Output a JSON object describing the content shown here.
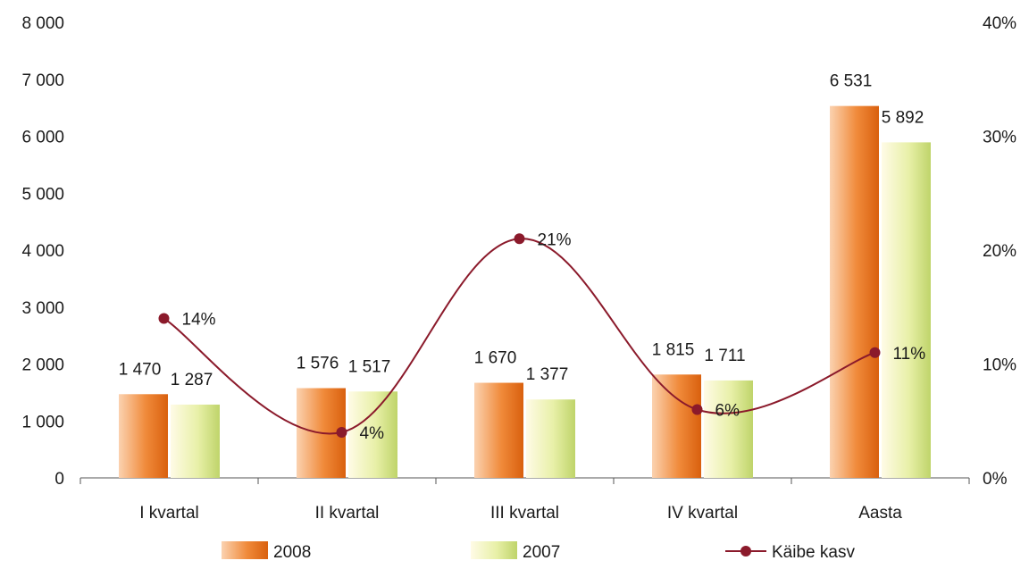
{
  "chart_data": {
    "type": "bar",
    "categories": [
      "I kvartal",
      "II kvartal",
      "III kvartal",
      "IV kvartal",
      "Aasta"
    ],
    "series": [
      {
        "name": "2008",
        "type": "bar",
        "axis": "left",
        "values": [
          1470,
          1576,
          1670,
          1815,
          6531
        ],
        "labels": [
          "1 470",
          "1 576",
          "1 670",
          "1 815",
          "6 531"
        ]
      },
      {
        "name": "2007",
        "type": "bar",
        "axis": "left",
        "values": [
          1287,
          1517,
          1377,
          1711,
          5892
        ],
        "labels": [
          "1 287",
          "1 517",
          "1 377",
          "1 711",
          "5 892"
        ]
      },
      {
        "name": "Käibe kasv",
        "type": "line",
        "axis": "right",
        "values": [
          14,
          4,
          21,
          6,
          11
        ],
        "labels": [
          "14%",
          "4%",
          "21%",
          "6%",
          "11%"
        ]
      }
    ],
    "y_left": {
      "ylim": [
        0,
        8000
      ],
      "ticks": [
        "0",
        "1 000",
        "2 000",
        "3 000",
        "4 000",
        "5 000",
        "6 000",
        "7 000",
        "8 000"
      ]
    },
    "y_right": {
      "ylim": [
        0,
        40
      ],
      "ticks": [
        "0%",
        "10%",
        "20%",
        "30%",
        "40%"
      ]
    },
    "legend": {
      "position": "bottom"
    },
    "grid": false,
    "colors": {
      "bar_2008": "#e8741e",
      "bar_2007": "#d8e88a",
      "line": "#8b1a2b"
    }
  }
}
